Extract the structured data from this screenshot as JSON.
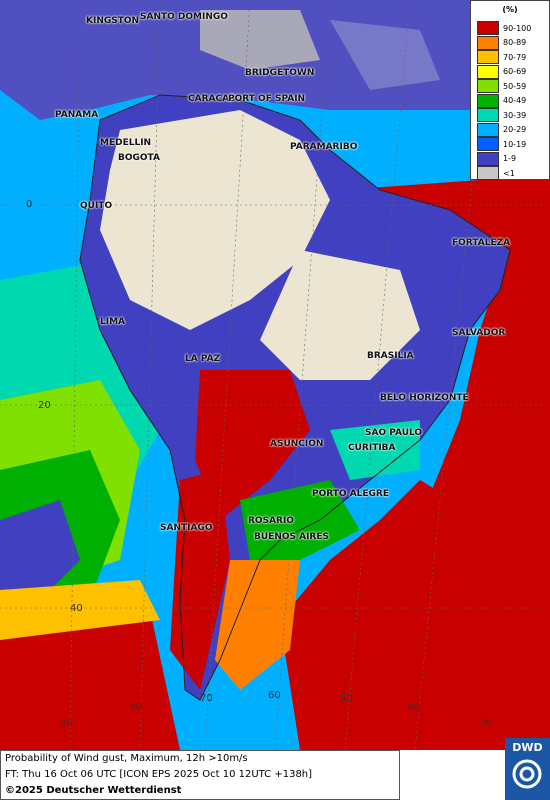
{
  "legend": {
    "title": "(%)",
    "items": [
      {
        "label": "90-100",
        "color": "#c80000"
      },
      {
        "label": "80-89",
        "color": "#ff7f00"
      },
      {
        "label": "70-79",
        "color": "#ffc000"
      },
      {
        "label": "60-69",
        "color": "#ffff00"
      },
      {
        "label": "50-59",
        "color": "#80e000"
      },
      {
        "label": "40-49",
        "color": "#00b000"
      },
      {
        "label": "30-39",
        "color": "#00d8b0"
      },
      {
        "label": "20-29",
        "color": "#00b0ff"
      },
      {
        "label": "10-19",
        "color": "#0060ff"
      },
      {
        "label": "1-9",
        "color": "#4040c0"
      },
      {
        "label": "<1",
        "color": "#c8c8c8"
      }
    ]
  },
  "cities": {
    "kingston": "KINGSTON",
    "santo_domingo": "SANTO DOMINGO",
    "bridgetown": "BRIDGETOWN",
    "caracas": "CARACAS",
    "port_of_spain": "PORT OF SPAIN",
    "panama": "PANAMA",
    "medellin": "MEDELLIN",
    "bogota": "BOGOTA",
    "paramaribo": "PARAMARIBO",
    "quito": "QUITO",
    "fortaleza": "FORTALEZA",
    "lima": "LIMA",
    "salvador": "SALVADOR",
    "la_paz": "LA PAZ",
    "brasilia": "BRASILIA",
    "belo_horizonte": "BELO HORIZONTE",
    "asuncion": "ASUNCION",
    "sao_paulo": "SAO PAULO",
    "curitiba": "CURITIBA",
    "porto_alegre": "PORTO ALEGRE",
    "rosario": "ROSARIO",
    "santiago": "SANTIAGO",
    "buenos_aires": "BUENOS AIRES"
  },
  "grid": {
    "lat_0": "0",
    "lat_20": "20",
    "lat_40": "40",
    "lon_80": "80",
    "lon_70": "70",
    "lon_60": "60",
    "lon_50": "50",
    "lon_40": "40",
    "lon_30": "30",
    "lon_80b": "80"
  },
  "footer": {
    "line1": "Probability of Wind gust, Maximum, 12h >10m/s",
    "line2": "FT: Thu 16 Oct 06 UTC [ICON EPS 2025 Oct 10 12UTC +138h]",
    "copyright": "©2025 Deutscher Wetterdienst"
  },
  "logo": {
    "text": "DWD"
  }
}
